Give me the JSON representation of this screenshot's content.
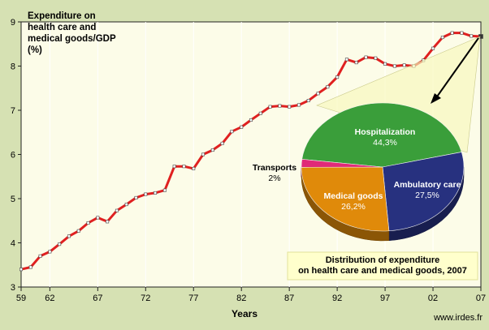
{
  "chart_data": [
    {
      "type": "line",
      "title": "Expenditure on\nhealth care and\nmedical goods/GDP\n(%)",
      "xlabel": "Years",
      "ylabel": "",
      "x_tick_labels": [
        "59",
        "62",
        "67",
        "72",
        "77",
        "82",
        "87",
        "92",
        "97",
        "02",
        "07"
      ],
      "x_ticks": [
        1959,
        1962,
        1967,
        1972,
        1977,
        1982,
        1987,
        1992,
        1997,
        2002,
        2007
      ],
      "y_ticks": [
        3,
        4,
        5,
        6,
        7,
        8,
        9
      ],
      "xlim": [
        1959,
        2007
      ],
      "ylim": [
        3,
        9
      ],
      "grid": "vertical",
      "x": [
        1959,
        1960,
        1961,
        1962,
        1963,
        1964,
        1965,
        1966,
        1967,
        1968,
        1969,
        1970,
        1971,
        1972,
        1973,
        1974,
        1975,
        1976,
        1977,
        1978,
        1979,
        1980,
        1981,
        1982,
        1983,
        1984,
        1985,
        1986,
        1987,
        1988,
        1989,
        1990,
        1991,
        1992,
        1993,
        1994,
        1995,
        1996,
        1997,
        1998,
        1999,
        2000,
        2001,
        2002,
        2003,
        2004,
        2005,
        2006,
        2007
      ],
      "series": [
        {
          "color": "#e02020",
          "values": [
            3.4,
            3.45,
            3.7,
            3.8,
            3.97,
            4.15,
            4.27,
            4.45,
            4.57,
            4.48,
            4.73,
            4.87,
            5.02,
            5.1,
            5.13,
            5.19,
            5.73,
            5.73,
            5.68,
            6.0,
            6.1,
            6.25,
            6.52,
            6.62,
            6.78,
            6.93,
            7.08,
            7.1,
            7.08,
            7.12,
            7.22,
            7.38,
            7.53,
            7.75,
            8.15,
            8.08,
            8.2,
            8.18,
            8.05,
            8.0,
            8.02,
            8.0,
            8.13,
            8.4,
            8.65,
            8.75,
            8.75,
            8.68,
            8.67
          ]
        }
      ]
    },
    {
      "type": "pie",
      "caption": "Distribution of expenditure\non health care and medical goods, 2007",
      "slices": [
        {
          "label": "Hospitalization",
          "value": 44.3,
          "value_label": "44,3%",
          "color": "#3a9e3a"
        },
        {
          "label": "Ambulatory care",
          "value": 27.5,
          "value_label": "27,5%",
          "color": "#27317f"
        },
        {
          "label": "Medical goods",
          "value": 26.2,
          "value_label": "26,2%",
          "color": "#e08a0a"
        },
        {
          "label": "Transports",
          "value": 2,
          "value_label": "2%",
          "color": "#e02a78"
        }
      ]
    }
  ],
  "credit": "www.irdes.fr"
}
